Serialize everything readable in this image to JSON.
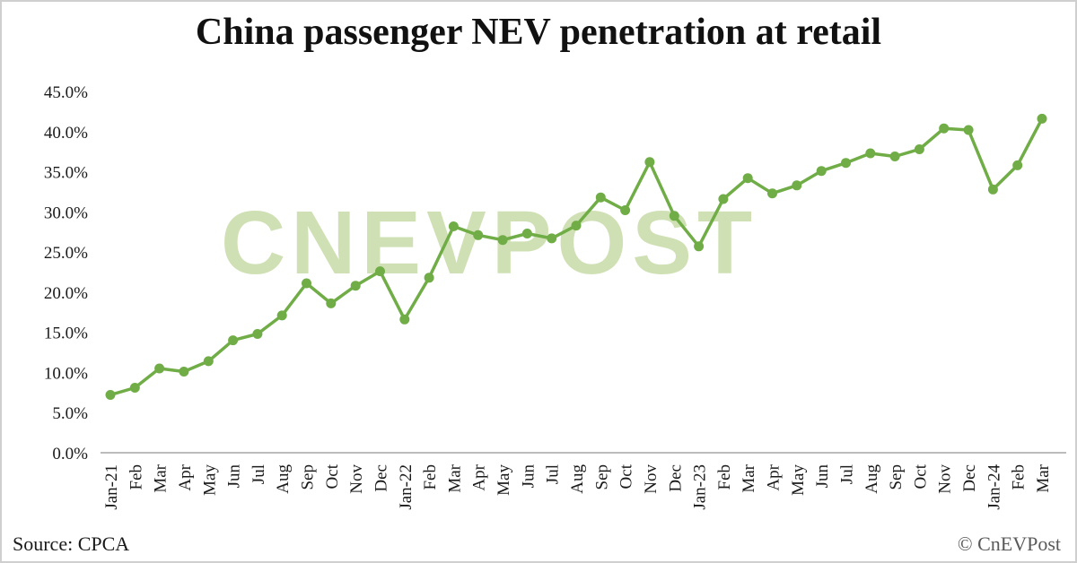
{
  "watermark": "CNEVPOST",
  "footer": {
    "source": "Source: CPCA",
    "credit": "© CnEVPost"
  },
  "colors": {
    "line": "#70ad47",
    "axis": "#a6a6a6",
    "tick_text": "#1a1a1a",
    "watermark": "#a8c978"
  },
  "chart_data": {
    "type": "line",
    "title": "China passenger NEV penetration at retail",
    "xlabel": "",
    "ylabel": "",
    "ylim": [
      0,
      45
    ],
    "ytick_step": 5,
    "yticks": [
      "0.0%",
      "5.0%",
      "10.0%",
      "15.0%",
      "20.0%",
      "25.0%",
      "30.0%",
      "35.0%",
      "40.0%",
      "45.0%"
    ],
    "grid": false,
    "legend": "none",
    "categories": [
      "Jan-21",
      "Feb",
      "Mar",
      "Apr",
      "May",
      "Jun",
      "Jul",
      "Aug",
      "Sep",
      "Oct",
      "Nov",
      "Dec",
      "Jan-22",
      "Feb",
      "Mar",
      "Apr",
      "May",
      "Jun",
      "Jul",
      "Aug",
      "Sep",
      "Oct",
      "Nov",
      "Dec",
      "Jan-23",
      "Feb",
      "Mar",
      "Apr",
      "May",
      "Jun",
      "Jul",
      "Aug",
      "Sep",
      "Oct",
      "Nov",
      "Dec",
      "Jan-24",
      "Feb",
      "Mar"
    ],
    "values": [
      7.2,
      8.1,
      10.5,
      10.1,
      11.4,
      14.0,
      14.8,
      17.1,
      21.1,
      18.6,
      20.8,
      22.6,
      16.6,
      21.8,
      28.2,
      27.1,
      26.5,
      27.3,
      26.7,
      28.3,
      31.8,
      30.2,
      36.2,
      29.5,
      25.7,
      31.6,
      34.2,
      32.3,
      33.3,
      35.1,
      36.1,
      37.3,
      36.9,
      37.8,
      40.4,
      40.2,
      32.8,
      35.8,
      41.6
    ]
  }
}
